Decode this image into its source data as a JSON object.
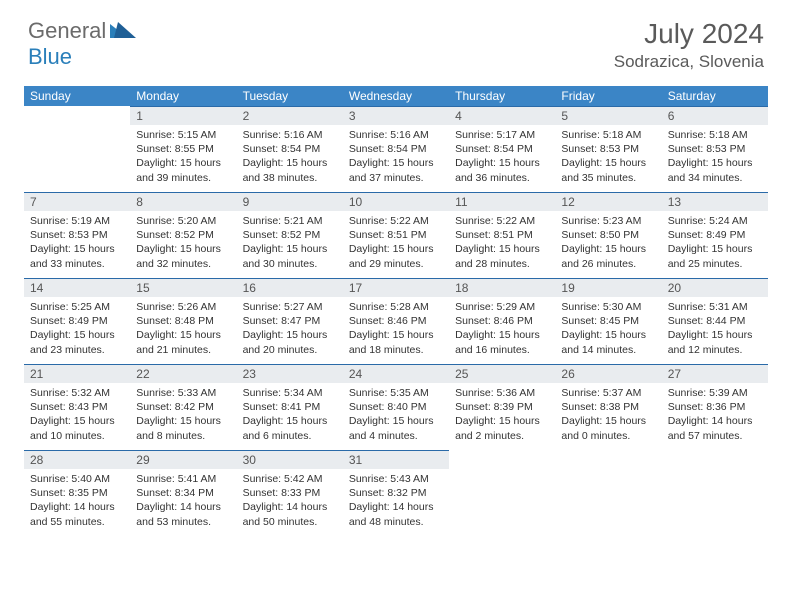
{
  "brand": {
    "part1": "General",
    "part2": "Blue"
  },
  "title": "July 2024",
  "location": "Sodrazica, Slovenia",
  "colors": {
    "header_bg": "#3b85c6",
    "header_text": "#ffffff",
    "daynum_bg": "#e9ecef",
    "row_border": "#2a6aa8",
    "brand_gray": "#6b6b6b",
    "brand_blue": "#2a7fba",
    "title_color": "#5a5a5a"
  },
  "weekdays": [
    "Sunday",
    "Monday",
    "Tuesday",
    "Wednesday",
    "Thursday",
    "Friday",
    "Saturday"
  ],
  "weeks": [
    [
      {
        "n": "",
        "empty": true
      },
      {
        "n": "1",
        "sunrise": "5:15 AM",
        "sunset": "8:55 PM",
        "daylight": "15 hours and 39 minutes."
      },
      {
        "n": "2",
        "sunrise": "5:16 AM",
        "sunset": "8:54 PM",
        "daylight": "15 hours and 38 minutes."
      },
      {
        "n": "3",
        "sunrise": "5:16 AM",
        "sunset": "8:54 PM",
        "daylight": "15 hours and 37 minutes."
      },
      {
        "n": "4",
        "sunrise": "5:17 AM",
        "sunset": "8:54 PM",
        "daylight": "15 hours and 36 minutes."
      },
      {
        "n": "5",
        "sunrise": "5:18 AM",
        "sunset": "8:53 PM",
        "daylight": "15 hours and 35 minutes."
      },
      {
        "n": "6",
        "sunrise": "5:18 AM",
        "sunset": "8:53 PM",
        "daylight": "15 hours and 34 minutes."
      }
    ],
    [
      {
        "n": "7",
        "sunrise": "5:19 AM",
        "sunset": "8:53 PM",
        "daylight": "15 hours and 33 minutes."
      },
      {
        "n": "8",
        "sunrise": "5:20 AM",
        "sunset": "8:52 PM",
        "daylight": "15 hours and 32 minutes."
      },
      {
        "n": "9",
        "sunrise": "5:21 AM",
        "sunset": "8:52 PM",
        "daylight": "15 hours and 30 minutes."
      },
      {
        "n": "10",
        "sunrise": "5:22 AM",
        "sunset": "8:51 PM",
        "daylight": "15 hours and 29 minutes."
      },
      {
        "n": "11",
        "sunrise": "5:22 AM",
        "sunset": "8:51 PM",
        "daylight": "15 hours and 28 minutes."
      },
      {
        "n": "12",
        "sunrise": "5:23 AM",
        "sunset": "8:50 PM",
        "daylight": "15 hours and 26 minutes."
      },
      {
        "n": "13",
        "sunrise": "5:24 AM",
        "sunset": "8:49 PM",
        "daylight": "15 hours and 25 minutes."
      }
    ],
    [
      {
        "n": "14",
        "sunrise": "5:25 AM",
        "sunset": "8:49 PM",
        "daylight": "15 hours and 23 minutes."
      },
      {
        "n": "15",
        "sunrise": "5:26 AM",
        "sunset": "8:48 PM",
        "daylight": "15 hours and 21 minutes."
      },
      {
        "n": "16",
        "sunrise": "5:27 AM",
        "sunset": "8:47 PM",
        "daylight": "15 hours and 20 minutes."
      },
      {
        "n": "17",
        "sunrise": "5:28 AM",
        "sunset": "8:46 PM",
        "daylight": "15 hours and 18 minutes."
      },
      {
        "n": "18",
        "sunrise": "5:29 AM",
        "sunset": "8:46 PM",
        "daylight": "15 hours and 16 minutes."
      },
      {
        "n": "19",
        "sunrise": "5:30 AM",
        "sunset": "8:45 PM",
        "daylight": "15 hours and 14 minutes."
      },
      {
        "n": "20",
        "sunrise": "5:31 AM",
        "sunset": "8:44 PM",
        "daylight": "15 hours and 12 minutes."
      }
    ],
    [
      {
        "n": "21",
        "sunrise": "5:32 AM",
        "sunset": "8:43 PM",
        "daylight": "15 hours and 10 minutes."
      },
      {
        "n": "22",
        "sunrise": "5:33 AM",
        "sunset": "8:42 PM",
        "daylight": "15 hours and 8 minutes."
      },
      {
        "n": "23",
        "sunrise": "5:34 AM",
        "sunset": "8:41 PM",
        "daylight": "15 hours and 6 minutes."
      },
      {
        "n": "24",
        "sunrise": "5:35 AM",
        "sunset": "8:40 PM",
        "daylight": "15 hours and 4 minutes."
      },
      {
        "n": "25",
        "sunrise": "5:36 AM",
        "sunset": "8:39 PM",
        "daylight": "15 hours and 2 minutes."
      },
      {
        "n": "26",
        "sunrise": "5:37 AM",
        "sunset": "8:38 PM",
        "daylight": "15 hours and 0 minutes."
      },
      {
        "n": "27",
        "sunrise": "5:39 AM",
        "sunset": "8:36 PM",
        "daylight": "14 hours and 57 minutes."
      }
    ],
    [
      {
        "n": "28",
        "sunrise": "5:40 AM",
        "sunset": "8:35 PM",
        "daylight": "14 hours and 55 minutes."
      },
      {
        "n": "29",
        "sunrise": "5:41 AM",
        "sunset": "8:34 PM",
        "daylight": "14 hours and 53 minutes."
      },
      {
        "n": "30",
        "sunrise": "5:42 AM",
        "sunset": "8:33 PM",
        "daylight": "14 hours and 50 minutes."
      },
      {
        "n": "31",
        "sunrise": "5:43 AM",
        "sunset": "8:32 PM",
        "daylight": "14 hours and 48 minutes."
      },
      {
        "n": "",
        "empty": true
      },
      {
        "n": "",
        "empty": true
      },
      {
        "n": "",
        "empty": true
      }
    ]
  ],
  "labels": {
    "sunrise": "Sunrise:",
    "sunset": "Sunset:",
    "daylight": "Daylight:"
  }
}
